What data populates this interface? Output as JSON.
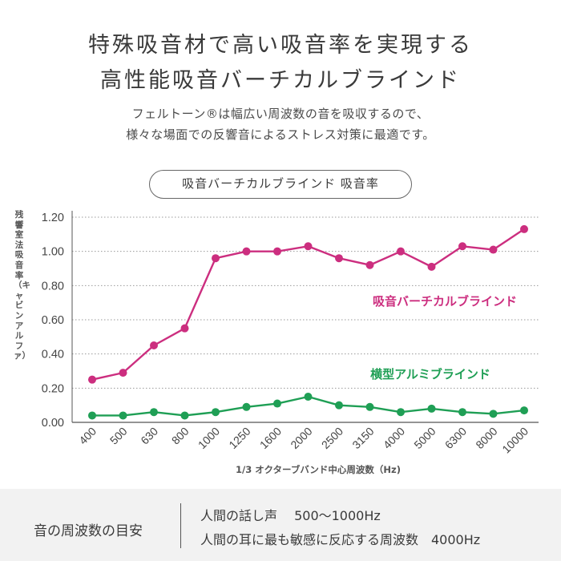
{
  "heading": {
    "line1": "特殊吸音材で高い吸音率を実現する",
    "line2": "高性能吸音バーチカルブラインド"
  },
  "subtext": {
    "line1": "フェルトーン®は幅広い周波数の音を吸収するので、",
    "line2": "様々な場面での反響音によるストレス対策に最適です。"
  },
  "chart_title_pill": "吸音バーチカルブラインド 吸音率",
  "chart_data": {
    "type": "line",
    "title": "吸音バーチカルブラインド 吸音率",
    "xlabel": "1/3 オクターブバンド中心周波数（Hz)",
    "ylabel": "残響室法吸音率（キャビンアルファ）",
    "categories": [
      "400",
      "500",
      "630",
      "800",
      "1000",
      "1250",
      "1600",
      "2000",
      "2500",
      "3150",
      "4000",
      "5000",
      "6300",
      "8000",
      "10000"
    ],
    "ylim": [
      0,
      1.2
    ],
    "yticks": [
      "0.00",
      "0.20",
      "0.40",
      "0.60",
      "0.80",
      "1.00",
      "1.20"
    ],
    "grid": "horizontal dotted",
    "series": [
      {
        "name": "吸音バーチカルブラインド",
        "color": "#cc2e7f",
        "values": [
          0.25,
          0.29,
          0.45,
          0.55,
          0.96,
          1.0,
          1.0,
          1.03,
          0.96,
          0.92,
          1.0,
          0.91,
          1.03,
          1.01,
          1.13
        ]
      },
      {
        "name": "横型アルミブラインド",
        "color": "#1f9f55",
        "values": [
          0.04,
          0.04,
          0.06,
          0.04,
          0.06,
          0.09,
          0.11,
          0.15,
          0.1,
          0.09,
          0.06,
          0.08,
          0.06,
          0.05,
          0.07
        ]
      }
    ]
  },
  "footer": {
    "title": "音の周波数の目安",
    "line1": "人間の話し声　 500〜1000Hz",
    "line2": "人間の耳に最も敏感に反応する周波数　4000Hz"
  }
}
